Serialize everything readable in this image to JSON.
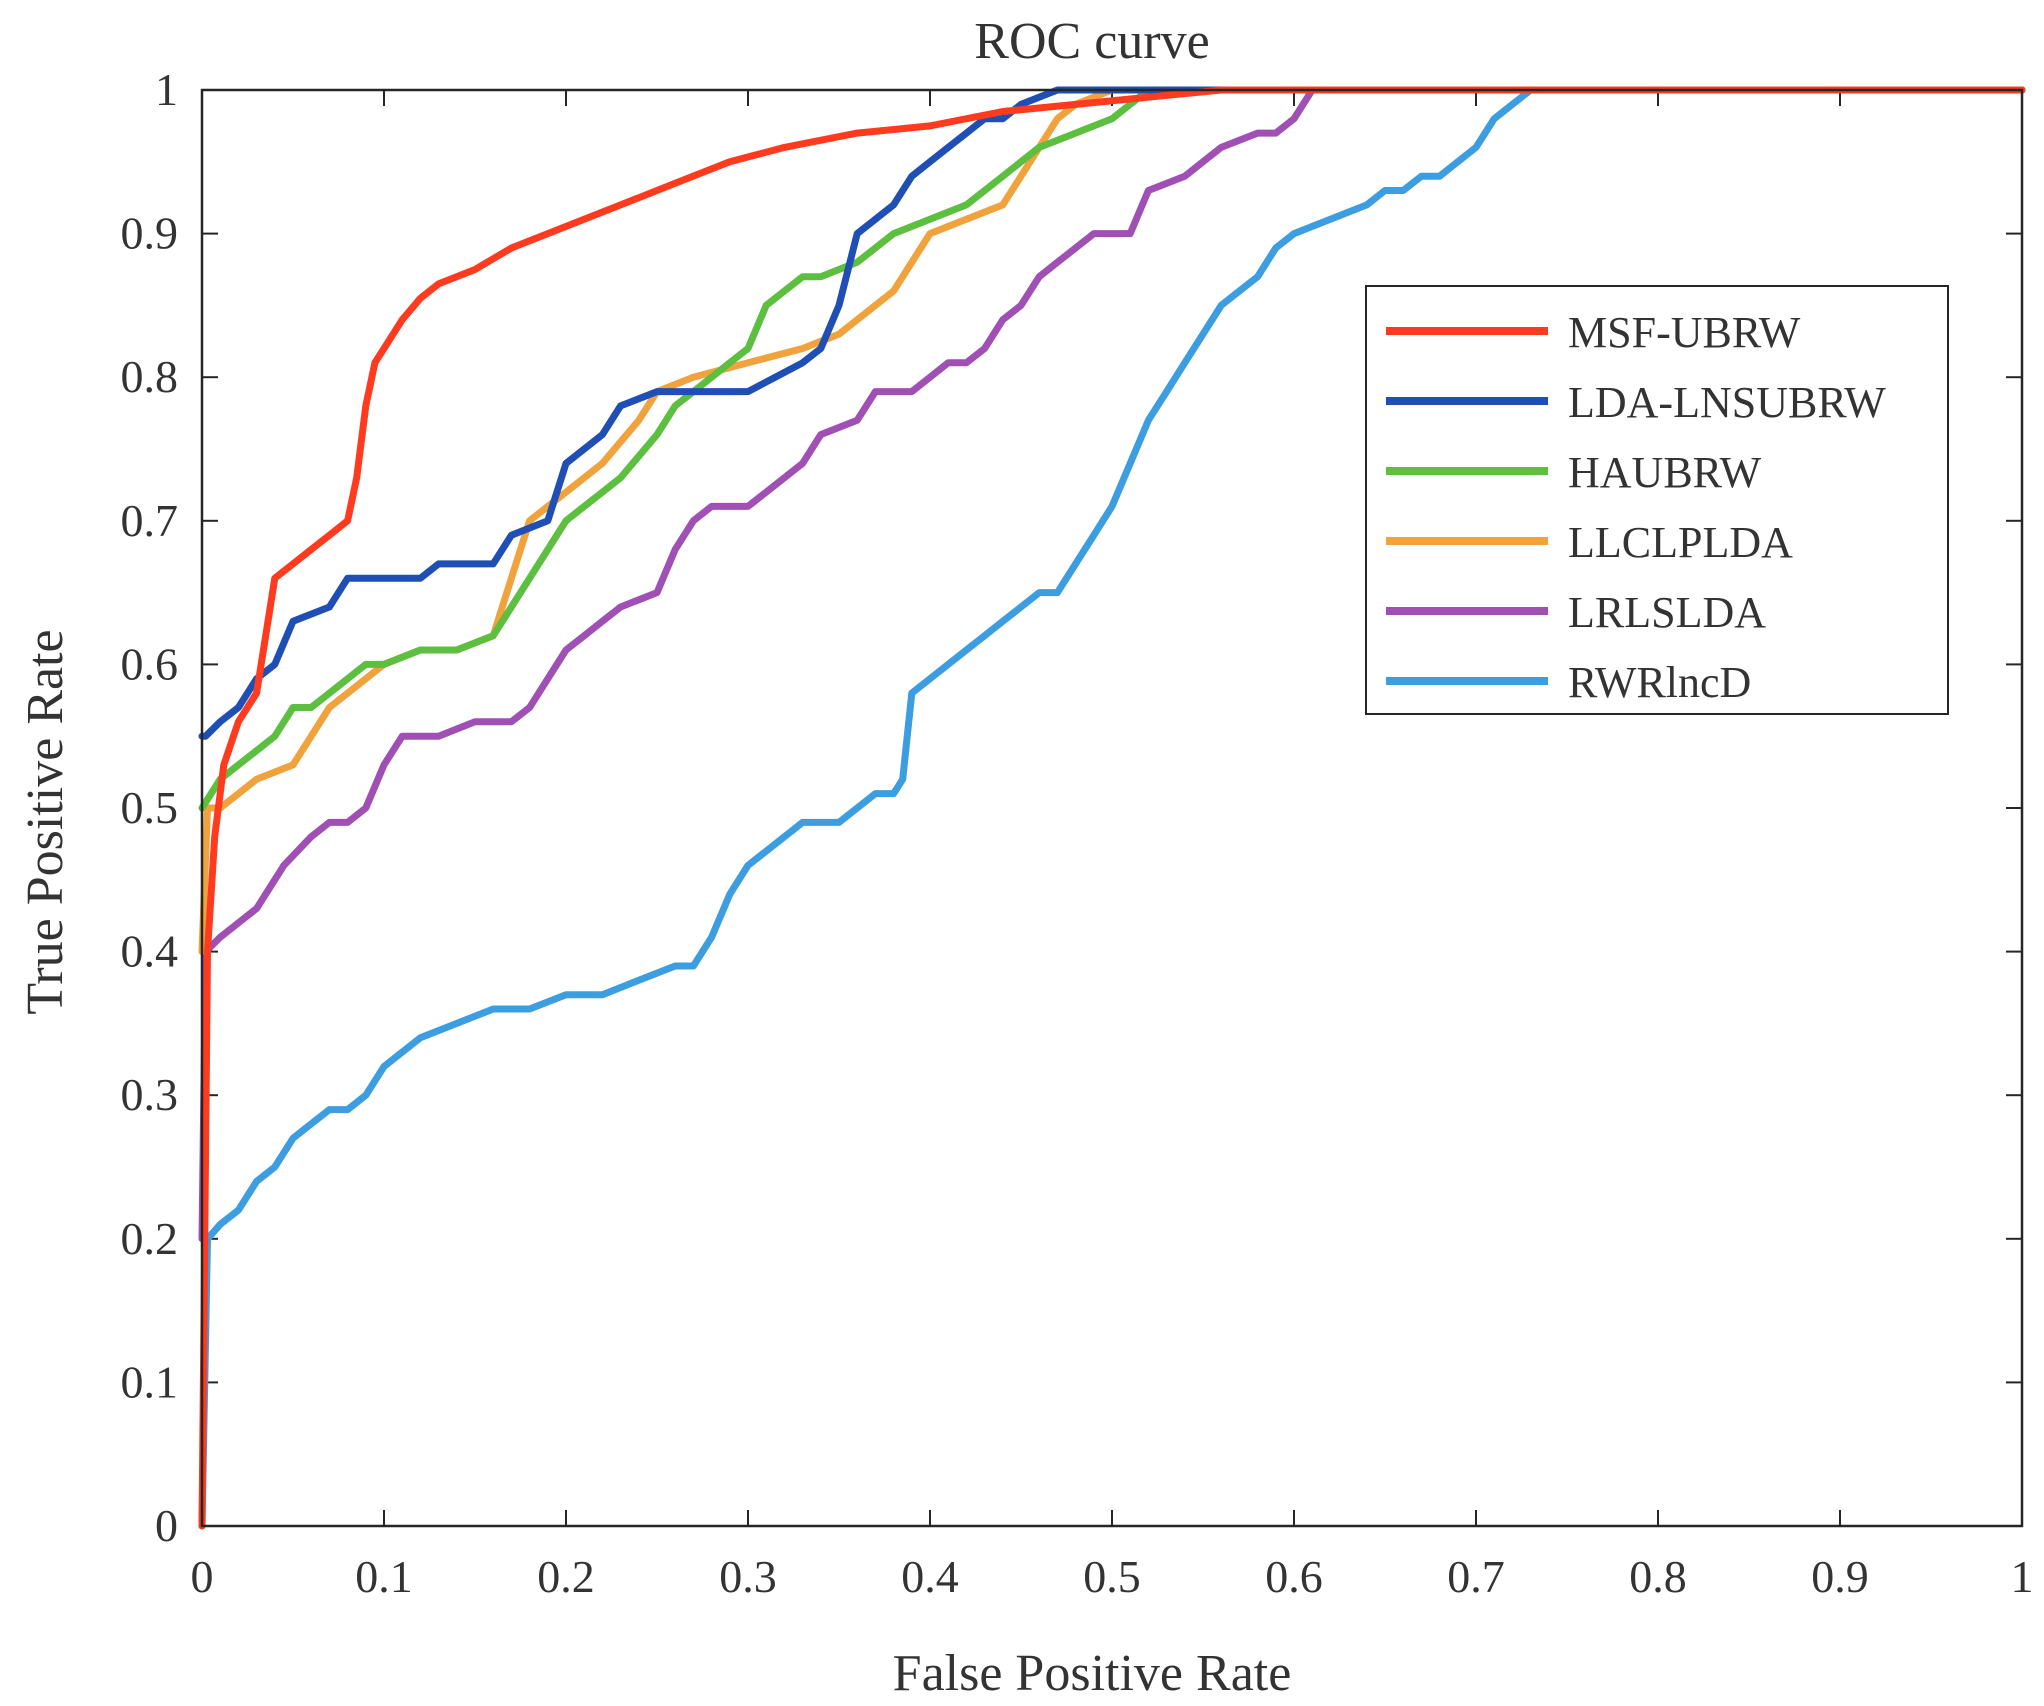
{
  "chart_data": {
    "type": "line",
    "title": "ROC curve",
    "xlabel": "False Positive Rate",
    "ylabel": "True Positive Rate",
    "xlim": [
      0,
      1
    ],
    "ylim": [
      0,
      1
    ],
    "xticks": [
      0,
      0.1,
      0.2,
      0.3,
      0.4,
      0.5,
      0.6,
      0.7,
      0.8,
      0.9,
      1
    ],
    "yticks": [
      0,
      0.1,
      0.2,
      0.3,
      0.4,
      0.5,
      0.6,
      0.7,
      0.8,
      0.9,
      1
    ],
    "xtick_labels": [
      "0",
      "0.1",
      "0.2",
      "0.3",
      "0.4",
      "0.5",
      "0.6",
      "0.7",
      "0.8",
      "0.9",
      "1"
    ],
    "ytick_labels": [
      "0",
      "0.1",
      "0.2",
      "0.3",
      "0.4",
      "0.5",
      "0.6",
      "0.7",
      "0.8",
      "0.9",
      "1"
    ],
    "grid": false,
    "legend_position": "top-right",
    "series": [
      {
        "name": "MSF-UBRW",
        "color": "#ff3b1f",
        "x": [
          0,
          0.003,
          0.007,
          0.012,
          0.02,
          0.03,
          0.035,
          0.04,
          0.05,
          0.06,
          0.07,
          0.08,
          0.085,
          0.09,
          0.095,
          0.1,
          0.11,
          0.12,
          0.13,
          0.15,
          0.17,
          0.19,
          0.21,
          0.23,
          0.26,
          0.29,
          0.32,
          0.36,
          0.4,
          0.44,
          0.48,
          0.52,
          0.56,
          0.6,
          1
        ],
        "y": [
          0,
          0.4,
          0.48,
          0.53,
          0.56,
          0.58,
          0.62,
          0.66,
          0.67,
          0.68,
          0.69,
          0.7,
          0.73,
          0.78,
          0.81,
          0.82,
          0.84,
          0.855,
          0.865,
          0.875,
          0.89,
          0.9,
          0.91,
          0.92,
          0.935,
          0.95,
          0.96,
          0.97,
          0.975,
          0.985,
          0.99,
          0.995,
          1,
          1,
          1
        ]
      },
      {
        "name": "LDA-LNSUBRW",
        "color": "#1f4fb4",
        "x": [
          0,
          0.002,
          0.01,
          0.02,
          0.03,
          0.04,
          0.05,
          0.07,
          0.08,
          0.12,
          0.13,
          0.16,
          0.17,
          0.19,
          0.2,
          0.21,
          0.22,
          0.23,
          0.25,
          0.27,
          0.3,
          0.33,
          0.34,
          0.35,
          0.36,
          0.37,
          0.38,
          0.39,
          0.4,
          0.41,
          0.42,
          0.43,
          0.44,
          0.45,
          0.47,
          0.48,
          1
        ],
        "y": [
          0.55,
          0.55,
          0.56,
          0.57,
          0.59,
          0.6,
          0.63,
          0.64,
          0.66,
          0.66,
          0.67,
          0.67,
          0.69,
          0.7,
          0.74,
          0.75,
          0.76,
          0.78,
          0.79,
          0.79,
          0.79,
          0.81,
          0.82,
          0.85,
          0.9,
          0.91,
          0.92,
          0.94,
          0.95,
          0.96,
          0.97,
          0.98,
          0.98,
          0.99,
          1,
          1,
          1
        ]
      },
      {
        "name": "HAUBRW",
        "color": "#5cbf3f",
        "x": [
          0,
          0.005,
          0.01,
          0.02,
          0.03,
          0.04,
          0.05,
          0.06,
          0.07,
          0.08,
          0.09,
          0.1,
          0.12,
          0.14,
          0.16,
          0.17,
          0.18,
          0.19,
          0.2,
          0.21,
          0.22,
          0.23,
          0.25,
          0.26,
          0.27,
          0.28,
          0.29,
          0.3,
          0.31,
          0.32,
          0.33,
          0.34,
          0.36,
          0.38,
          0.4,
          0.42,
          0.44,
          0.46,
          0.48,
          0.5,
          0.52,
          1
        ],
        "y": [
          0.5,
          0.51,
          0.52,
          0.53,
          0.54,
          0.55,
          0.57,
          0.57,
          0.58,
          0.59,
          0.6,
          0.6,
          0.61,
          0.61,
          0.62,
          0.64,
          0.66,
          0.68,
          0.7,
          0.71,
          0.72,
          0.73,
          0.76,
          0.78,
          0.79,
          0.8,
          0.81,
          0.82,
          0.85,
          0.86,
          0.87,
          0.87,
          0.88,
          0.9,
          0.91,
          0.92,
          0.94,
          0.96,
          0.97,
          0.98,
          1,
          1
        ]
      },
      {
        "name": "LLCLPLDA",
        "color": "#f0a33c",
        "x": [
          0,
          0.003,
          0.01,
          0.02,
          0.03,
          0.05,
          0.06,
          0.07,
          0.08,
          0.1,
          0.12,
          0.14,
          0.16,
          0.17,
          0.18,
          0.19,
          0.2,
          0.22,
          0.24,
          0.25,
          0.27,
          0.3,
          0.33,
          0.35,
          0.37,
          0.38,
          0.39,
          0.4,
          0.42,
          0.44,
          0.45,
          0.46,
          0.47,
          0.48,
          0.5,
          0.6,
          1
        ],
        "y": [
          0.4,
          0.5,
          0.5,
          0.51,
          0.52,
          0.53,
          0.55,
          0.57,
          0.58,
          0.6,
          0.61,
          0.61,
          0.62,
          0.66,
          0.7,
          0.71,
          0.72,
          0.74,
          0.77,
          0.79,
          0.8,
          0.81,
          0.82,
          0.83,
          0.85,
          0.86,
          0.88,
          0.9,
          0.91,
          0.92,
          0.94,
          0.96,
          0.98,
          0.99,
          1,
          1,
          1
        ]
      },
      {
        "name": "LRLSLDA",
        "color": "#a050b4",
        "x": [
          0,
          0.002,
          0.01,
          0.02,
          0.03,
          0.045,
          0.06,
          0.07,
          0.08,
          0.09,
          0.1,
          0.11,
          0.13,
          0.15,
          0.17,
          0.18,
          0.19,
          0.2,
          0.21,
          0.22,
          0.23,
          0.25,
          0.26,
          0.27,
          0.28,
          0.29,
          0.3,
          0.31,
          0.32,
          0.33,
          0.34,
          0.36,
          0.37,
          0.38,
          0.39,
          0.4,
          0.41,
          0.42,
          0.43,
          0.44,
          0.45,
          0.46,
          0.47,
          0.48,
          0.49,
          0.5,
          0.51,
          0.52,
          0.54,
          0.55,
          0.56,
          0.58,
          0.59,
          0.6,
          0.61,
          0.72,
          1
        ],
        "y": [
          0.2,
          0.4,
          0.41,
          0.42,
          0.43,
          0.46,
          0.48,
          0.49,
          0.49,
          0.5,
          0.53,
          0.55,
          0.55,
          0.56,
          0.56,
          0.57,
          0.59,
          0.61,
          0.62,
          0.63,
          0.64,
          0.65,
          0.68,
          0.7,
          0.71,
          0.71,
          0.71,
          0.72,
          0.73,
          0.74,
          0.76,
          0.77,
          0.79,
          0.79,
          0.79,
          0.8,
          0.81,
          0.81,
          0.82,
          0.84,
          0.85,
          0.87,
          0.88,
          0.89,
          0.9,
          0.9,
          0.9,
          0.93,
          0.94,
          0.95,
          0.96,
          0.97,
          0.97,
          0.98,
          1,
          1,
          1
        ]
      },
      {
        "name": "RWRlncD",
        "color": "#3c9ee0",
        "x": [
          0,
          0.003,
          0.01,
          0.02,
          0.03,
          0.04,
          0.05,
          0.06,
          0.07,
          0.08,
          0.09,
          0.1,
          0.12,
          0.14,
          0.16,
          0.18,
          0.2,
          0.22,
          0.24,
          0.26,
          0.27,
          0.28,
          0.29,
          0.3,
          0.31,
          0.32,
          0.33,
          0.34,
          0.35,
          0.36,
          0.37,
          0.38,
          0.385,
          0.39,
          0.4,
          0.41,
          0.42,
          0.43,
          0.44,
          0.45,
          0.46,
          0.47,
          0.48,
          0.49,
          0.5,
          0.51,
          0.52,
          0.53,
          0.54,
          0.55,
          0.56,
          0.57,
          0.58,
          0.59,
          0.6,
          0.62,
          0.64,
          0.65,
          0.66,
          0.67,
          0.68,
          0.69,
          0.7,
          0.71,
          0.72,
          0.73,
          0.74,
          1
        ],
        "y": [
          0,
          0.2,
          0.21,
          0.22,
          0.24,
          0.25,
          0.27,
          0.28,
          0.29,
          0.29,
          0.3,
          0.32,
          0.34,
          0.35,
          0.36,
          0.36,
          0.37,
          0.37,
          0.38,
          0.39,
          0.39,
          0.41,
          0.44,
          0.46,
          0.47,
          0.48,
          0.49,
          0.49,
          0.49,
          0.5,
          0.51,
          0.51,
          0.52,
          0.58,
          0.59,
          0.6,
          0.61,
          0.62,
          0.63,
          0.64,
          0.65,
          0.65,
          0.67,
          0.69,
          0.71,
          0.74,
          0.77,
          0.79,
          0.81,
          0.83,
          0.85,
          0.86,
          0.87,
          0.89,
          0.9,
          0.91,
          0.92,
          0.93,
          0.93,
          0.94,
          0.94,
          0.95,
          0.96,
          0.98,
          0.99,
          1,
          1,
          1
        ]
      }
    ]
  }
}
